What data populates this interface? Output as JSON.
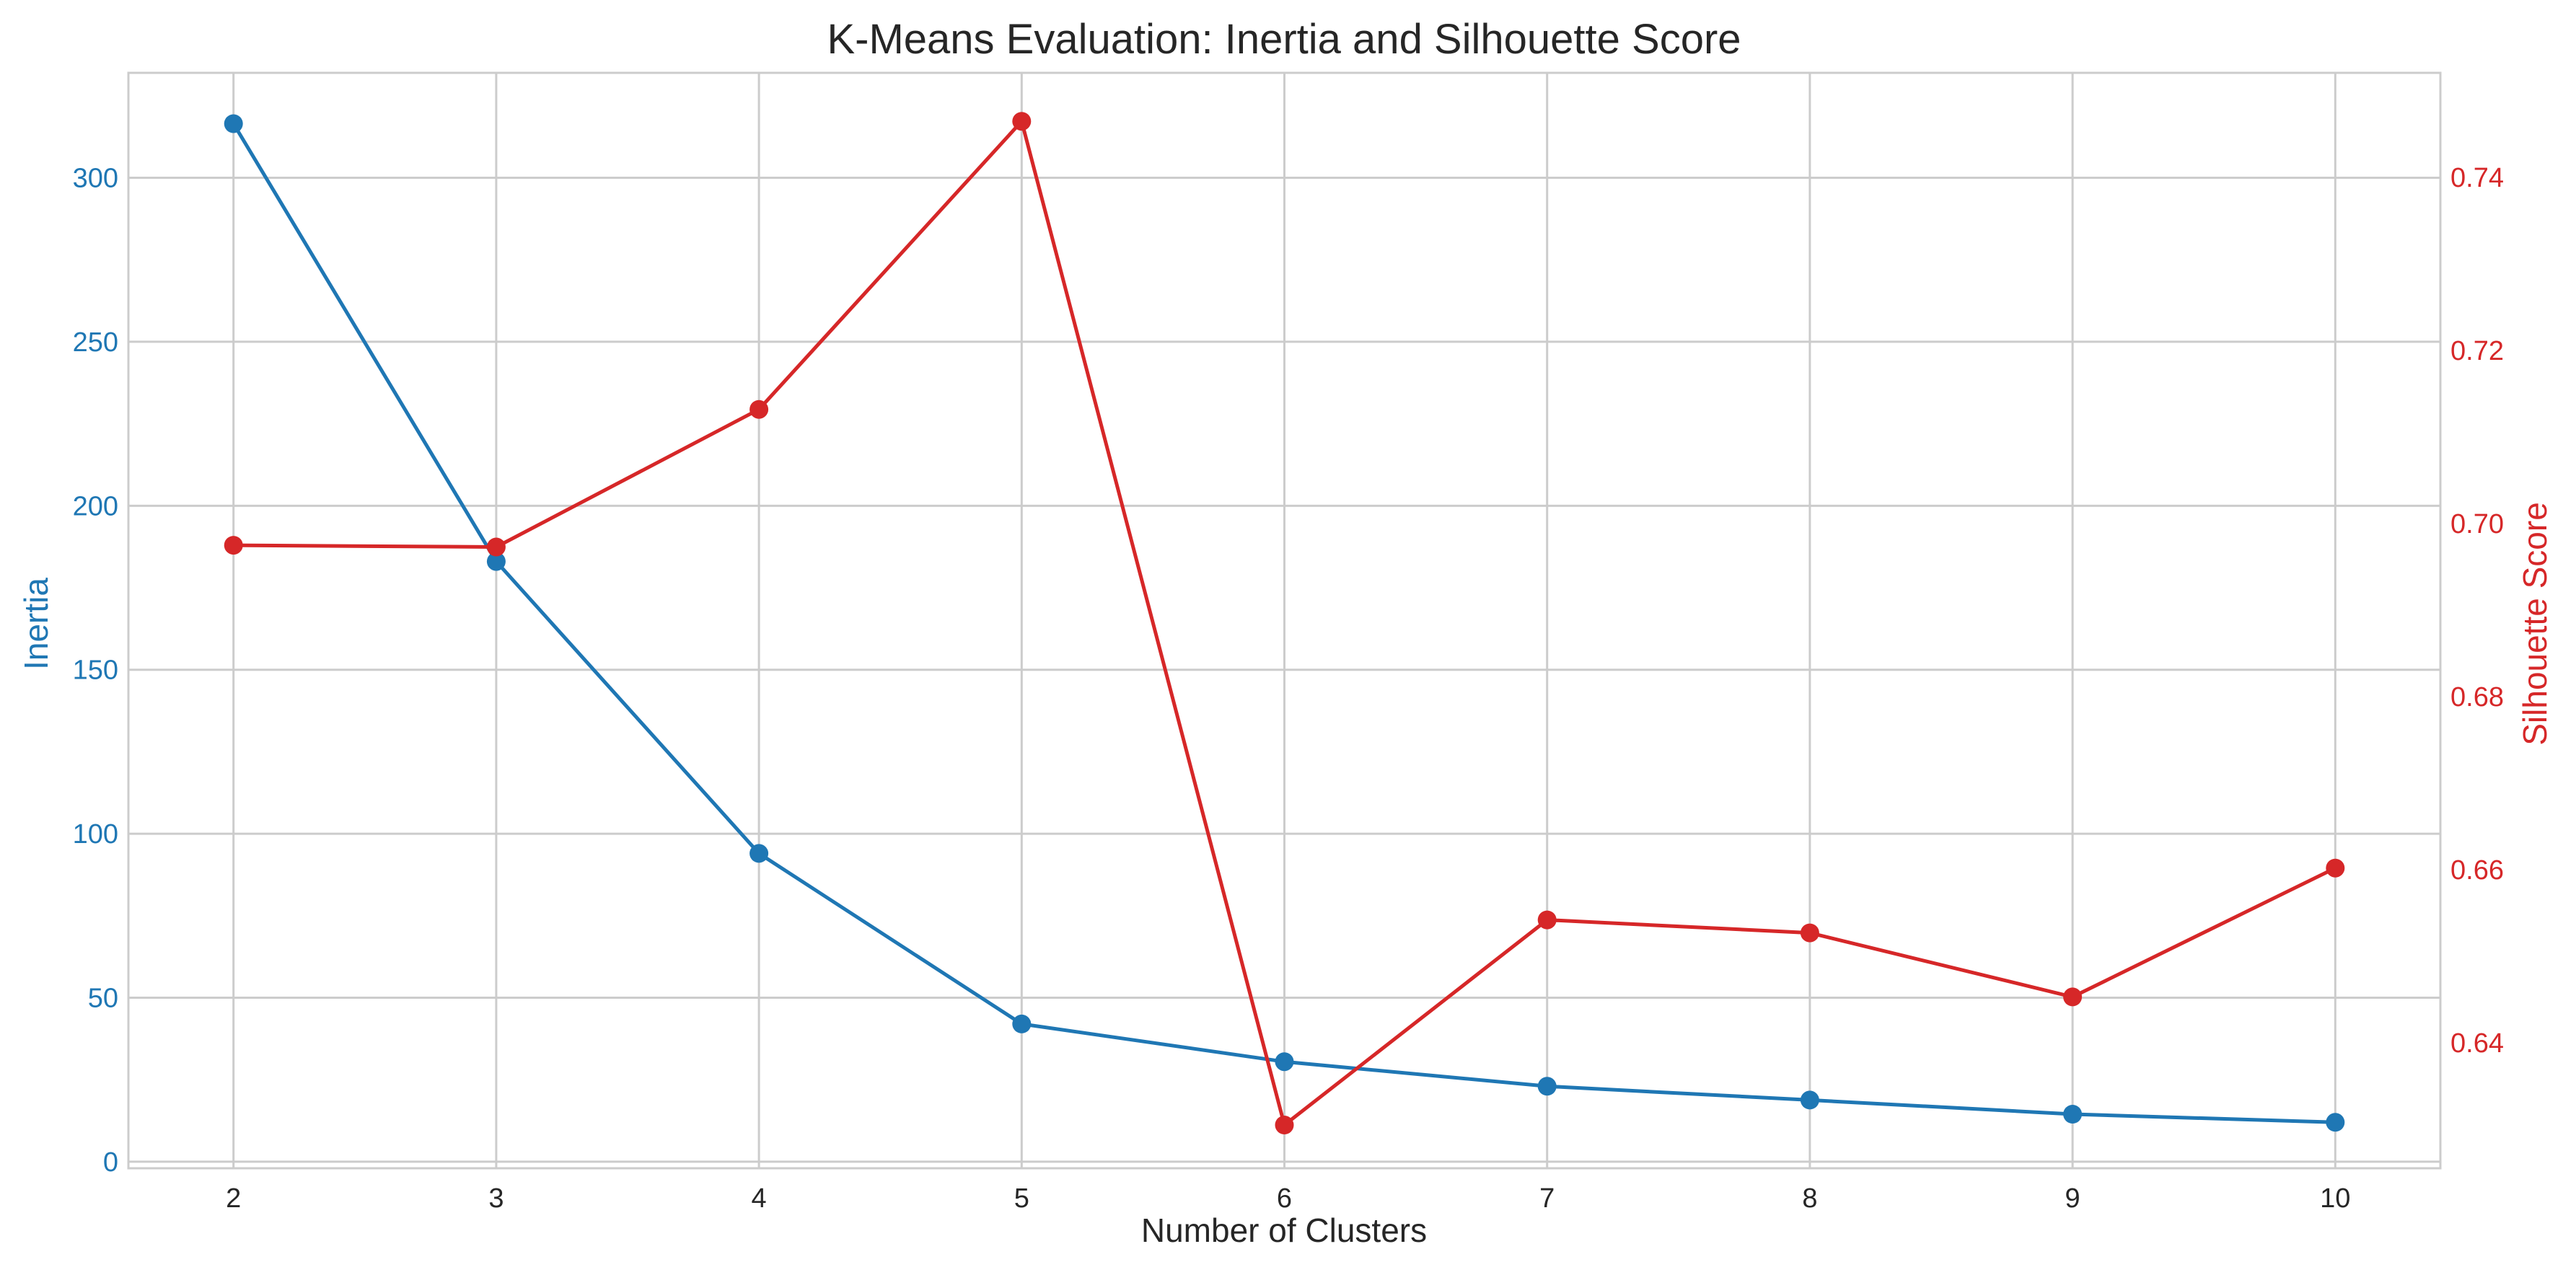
{
  "chart_data": {
    "type": "line",
    "title": "K-Means Evaluation: Inertia and Silhouette Score",
    "xlabel": "Number of Clusters",
    "ylabel": "Inertia",
    "y2label": "Silhouette Score",
    "x": [
      2,
      3,
      4,
      5,
      6,
      7,
      8,
      9,
      10
    ],
    "xlim": [
      1.6,
      10.4
    ],
    "ylim": [
      -2,
      332
    ],
    "y2lim": [
      0.6255,
      0.7521
    ],
    "xticks": [
      "2",
      "3",
      "4",
      "5",
      "6",
      "7",
      "8",
      "9",
      "10"
    ],
    "yticks": [
      "0",
      "50",
      "100",
      "150",
      "200",
      "250",
      "300"
    ],
    "y2ticks": [
      "0.64",
      "0.66",
      "0.68",
      "0.70",
      "0.72",
      "0.74"
    ],
    "grid": true,
    "series": [
      {
        "name": "Inertia",
        "axis": "left",
        "color": "#1f77b4",
        "marker": "circle",
        "values": [
          316.5,
          183.0,
          94.0,
          42.0,
          30.5,
          23.0,
          18.8,
          14.5,
          12.0
        ]
      },
      {
        "name": "Silhouette Score",
        "axis": "right",
        "color": "#d62728",
        "marker": "circle",
        "values": [
          0.6975,
          0.6973,
          0.7132,
          0.7465,
          0.6305,
          0.6542,
          0.6527,
          0.6453,
          0.6602
        ]
      }
    ]
  }
}
